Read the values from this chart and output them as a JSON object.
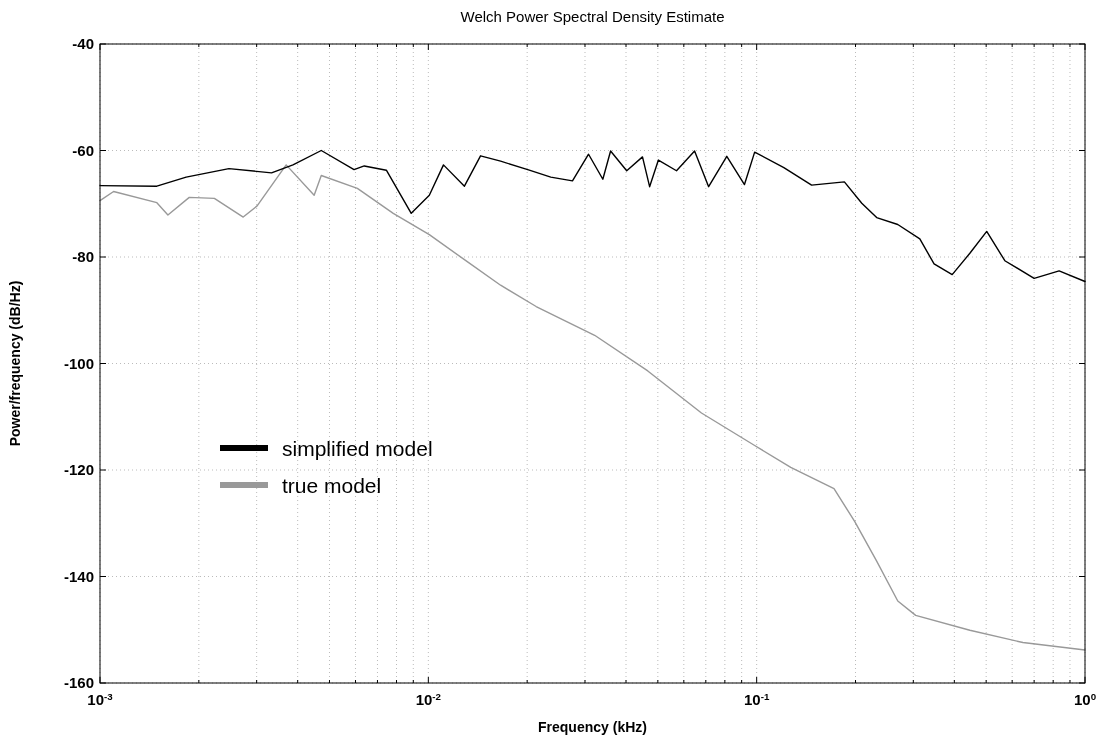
{
  "chart_data": {
    "type": "line",
    "title": "Welch Power Spectral Density Estimate",
    "xlabel": "Frequency (kHz)",
    "ylabel": "Power/frequency (dB/Hz)",
    "log": "x",
    "grid": true,
    "legend": "bottom left",
    "line_style": "solid",
    "marker": "none",
    "xlim": [
      0.001,
      1
    ],
    "ylim": [
      -160,
      -40
    ],
    "xticks": [
      {
        "value": 0.001,
        "label": "10$^{-3}$"
      },
      {
        "value": 0.002,
        "label": null
      },
      {
        "value": 0.003,
        "label": null
      },
      {
        "value": 0.004,
        "label": null
      },
      {
        "value": 0.005,
        "label": null
      },
      {
        "value": 0.006,
        "label": null
      },
      {
        "value": 0.007,
        "label": null
      },
      {
        "value": 0.008,
        "label": null
      },
      {
        "value": 0.009,
        "label": null
      },
      {
        "value": 0.01,
        "label": "10$^{-2}$"
      },
      {
        "value": 0.02,
        "label": null
      },
      {
        "value": 0.03,
        "label": null
      },
      {
        "value": 0.04,
        "label": null
      },
      {
        "value": 0.05,
        "label": null
      },
      {
        "value": 0.06,
        "label": null
      },
      {
        "value": 0.07,
        "label": null
      },
      {
        "value": 0.08,
        "label": null
      },
      {
        "value": 0.09,
        "label": null
      },
      {
        "value": 0.1,
        "label": "10$^{-1}$"
      },
      {
        "value": 0.2,
        "label": null
      },
      {
        "value": 0.3,
        "label": null
      },
      {
        "value": 0.4,
        "label": null
      },
      {
        "value": 0.5,
        "label": null
      },
      {
        "value": 0.6,
        "label": null
      },
      {
        "value": 0.7,
        "label": null
      },
      {
        "value": 0.8,
        "label": null
      },
      {
        "value": 0.9,
        "label": null
      },
      {
        "value": 1,
        "label": "10$^{0}$"
      }
    ],
    "yticks": [
      -160,
      -140,
      -120,
      -100,
      -80,
      -60,
      -40
    ],
    "series": [
      {
        "name": "true model",
        "color": "#999999",
        "x": [
          0.001,
          0.0011,
          0.00149,
          0.00161,
          0.00187,
          0.00223,
          0.00273,
          0.00301,
          0.00369,
          0.00449,
          0.00472,
          0.00608,
          0.00782,
          0.01007,
          0.01288,
          0.0166,
          0.0213,
          0.0321,
          0.0466,
          0.0679,
          0.0986,
          0.127,
          0.172,
          0.199,
          0.232,
          0.269,
          0.305,
          0.446,
          0.647,
          1
        ],
        "values": [
          -69.4,
          -67.7,
          -69.8,
          -72.1,
          -68.8,
          -69,
          -72.5,
          -70.4,
          -62.7,
          -68.4,
          -64.7,
          -67.1,
          -71.8,
          -75.8,
          -80.5,
          -85.3,
          -89.3,
          -94.7,
          -101.4,
          -109.3,
          -115.4,
          -119.5,
          -123.5,
          -129.7,
          -137.1,
          -144.6,
          -147.3,
          -150.1,
          -152.4,
          -153.8
        ]
      },
      {
        "name": "simplified model",
        "color": "#000000",
        "x": [
          0.001,
          0.00149,
          0.00183,
          0.00247,
          0.00333,
          0.00387,
          0.00472,
          0.00594,
          0.00638,
          0.00745,
          0.00887,
          0.01007,
          0.01112,
          0.01288,
          0.01442,
          0.0166,
          0.0203,
          0.0236,
          0.02748,
          0.03076,
          0.034,
          0.0359,
          0.0402,
          0.0449,
          0.0472,
          0.0502,
          0.057,
          0.0647,
          0.0714,
          0.0811,
          0.0918,
          0.0986,
          0.121,
          0.147,
          0.185,
          0.209,
          0.232,
          0.269,
          0.314,
          0.347,
          0.394,
          0.446,
          0.502,
          0.57,
          0.7,
          0.834,
          1
        ],
        "values": [
          -66.6,
          -66.7,
          -65,
          -63.4,
          -64.2,
          -62.7,
          -60,
          -63.6,
          -62.9,
          -63.7,
          -71.8,
          -68.4,
          -62.7,
          -66.7,
          -61,
          -62,
          -63.7,
          -65,
          -65.7,
          -60.7,
          -65.4,
          -60.1,
          -63.8,
          -61.2,
          -66.8,
          -61.8,
          -63.8,
          -60.1,
          -66.8,
          -61.1,
          -66.4,
          -60.3,
          -63.2,
          -66.5,
          -65.9,
          -69.9,
          -72.6,
          -73.9,
          -76.6,
          -81.3,
          -83.3,
          -79.3,
          -75.2,
          -80.7,
          -84,
          -82.6,
          -84.6
        ]
      }
    ]
  }
}
